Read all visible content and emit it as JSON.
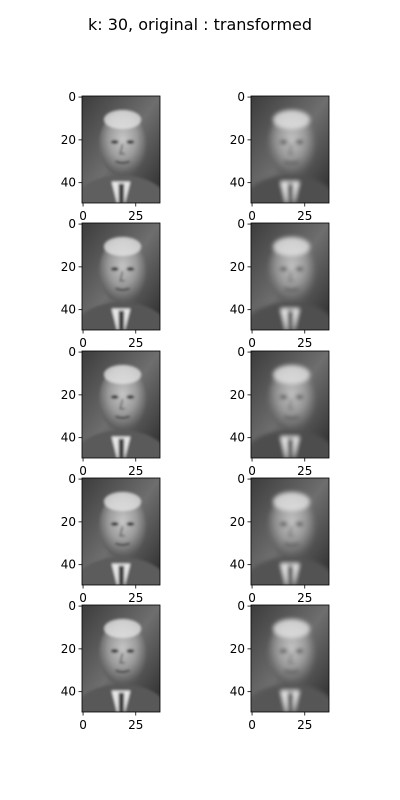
{
  "figure": {
    "title": "k: 30,   original : transformed",
    "background": "#ffffff"
  },
  "axes_ticks": {
    "y_labels": [
      "0",
      "20",
      "40"
    ],
    "x_labels": [
      "0",
      "25"
    ]
  },
  "panels": [
    {
      "row": 1,
      "col": "original",
      "tone": 0.62
    },
    {
      "row": 1,
      "col": "transformed",
      "tone": 0.5
    },
    {
      "row": 2,
      "col": "original",
      "tone": 0.55
    },
    {
      "row": 2,
      "col": "transformed",
      "tone": 0.5
    },
    {
      "row": 3,
      "col": "original",
      "tone": 0.58
    },
    {
      "row": 3,
      "col": "transformed",
      "tone": 0.48
    },
    {
      "row": 4,
      "col": "original",
      "tone": 0.6
    },
    {
      "row": 4,
      "col": "transformed",
      "tone": 0.52
    },
    {
      "row": 5,
      "col": "original",
      "tone": 0.57
    },
    {
      "row": 5,
      "col": "transformed",
      "tone": 0.55
    }
  ]
}
